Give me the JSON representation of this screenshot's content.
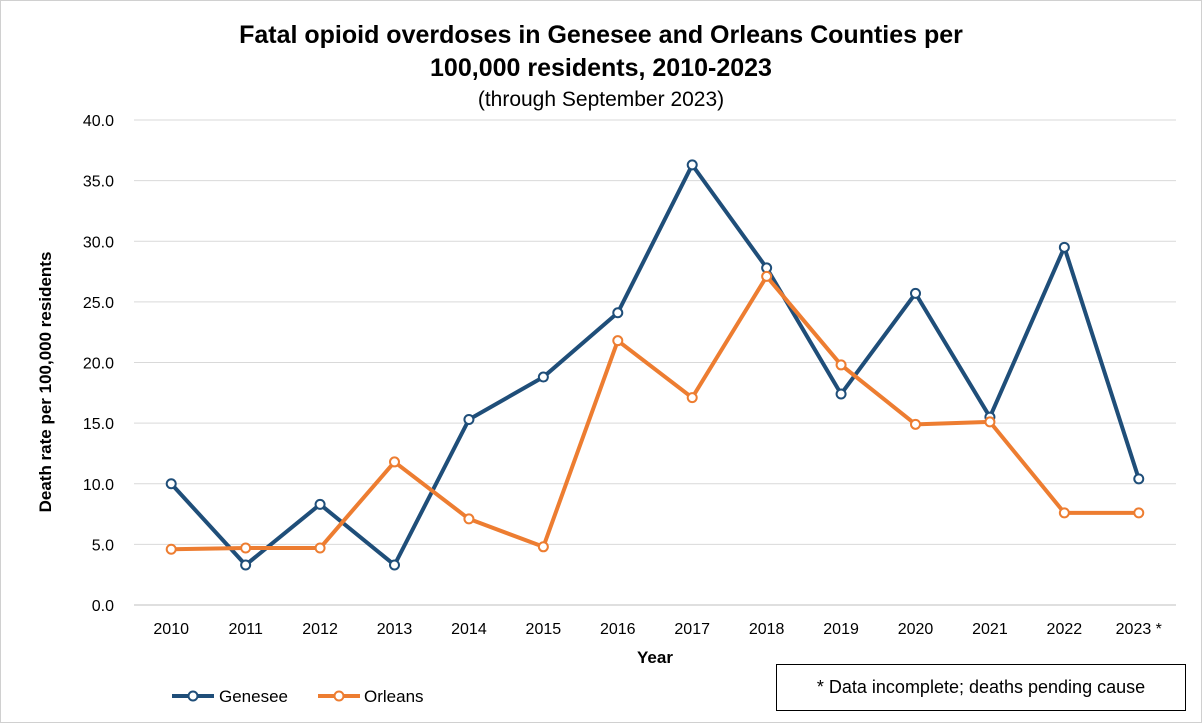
{
  "chart_data": {
    "type": "line",
    "title_line1": "Fatal opioid overdoses in Genesee and Orleans Counties per",
    "title_line2": "100,000 residents, 2010-2023",
    "subtitle": "(through September 2023)",
    "xlabel": "Year",
    "ylabel": "Death rate per 100,000 residents",
    "categories": [
      "2010",
      "2011",
      "2012",
      "2013",
      "2014",
      "2015",
      "2016",
      "2017",
      "2018",
      "2019",
      "2020",
      "2021",
      "2022",
      "2023 *"
    ],
    "ylim": [
      0,
      40
    ],
    "yticks": [
      "0.0",
      "5.0",
      "10.0",
      "15.0",
      "20.0",
      "25.0",
      "30.0",
      "35.0",
      "40.0"
    ],
    "grid": true,
    "legend_position": "bottom-left",
    "series": [
      {
        "name": "Genesee",
        "color": "#1f4e79",
        "values": [
          10.0,
          3.3,
          8.3,
          3.3,
          15.3,
          18.8,
          24.1,
          36.3,
          27.8,
          17.4,
          25.7,
          15.5,
          29.5,
          10.4
        ]
      },
      {
        "name": "Orleans",
        "color": "#ed7d31",
        "values": [
          4.6,
          4.7,
          4.7,
          11.8,
          7.1,
          4.8,
          21.8,
          17.1,
          27.1,
          19.8,
          14.9,
          15.1,
          7.6,
          7.6
        ]
      }
    ],
    "note": "* Data incomplete; deaths pending cause"
  }
}
